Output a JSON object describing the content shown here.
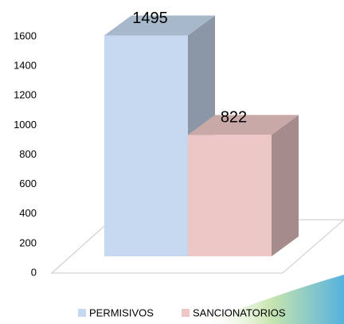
{
  "chart_data": {
    "type": "bar3d",
    "categories": [
      null
    ],
    "series": [
      {
        "name": "PERMISIVOS",
        "color": "#c6d8ef",
        "values": [
          1495
        ]
      },
      {
        "name": "SANCIONATORIOS",
        "color": "#ecc7c6",
        "values": [
          822
        ]
      }
    ],
    "ylim": [
      0,
      1600
    ],
    "yticks": [
      0,
      200,
      400,
      600,
      800,
      1000,
      1200,
      1400,
      1600
    ],
    "legend": "bottom"
  }
}
